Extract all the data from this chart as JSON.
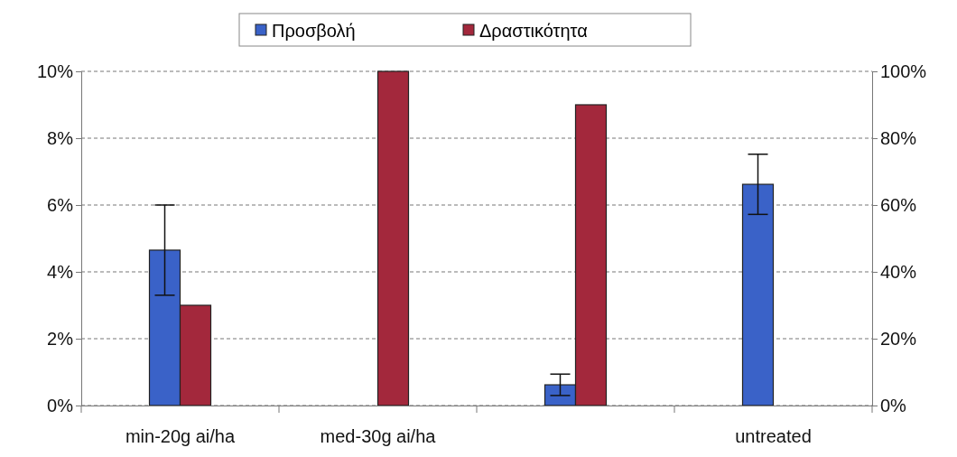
{
  "chart_data": {
    "type": "bar",
    "categories": [
      "min-20g ai/ha",
      "med-30g ai/ha",
      null,
      "untreated"
    ],
    "series": [
      {
        "name": "Προσβολή",
        "color": "#3a62c8",
        "values": [
          4.65,
          0,
          0.62,
          6.62
        ],
        "errors": [
          1.35,
          null,
          0.32,
          0.9
        ]
      },
      {
        "name": "Δραστικότητα",
        "color": "#a3283c",
        "axis": "y2",
        "values": [
          30,
          100,
          90,
          0
        ]
      }
    ],
    "ylim": [
      0,
      10
    ],
    "yticks": [
      {
        "value": 0,
        "label": "0%"
      },
      {
        "value": 2,
        "label": "2%"
      },
      {
        "value": 4,
        "label": "4%"
      },
      {
        "value": 6,
        "label": "6%"
      },
      {
        "value": 8,
        "label": "8%"
      },
      {
        "value": 10,
        "label": "10%"
      }
    ],
    "y2lim": [
      0,
      100
    ],
    "y2ticks": [
      {
        "value": 0,
        "label": "0%"
      },
      {
        "value": 20,
        "label": "20%"
      },
      {
        "value": 40,
        "label": "40%"
      },
      {
        "value": 60,
        "label": "60%"
      },
      {
        "value": 80,
        "label": "80%"
      },
      {
        "value": 100,
        "label": "100%"
      }
    ],
    "grid": "y",
    "legend": "top"
  }
}
